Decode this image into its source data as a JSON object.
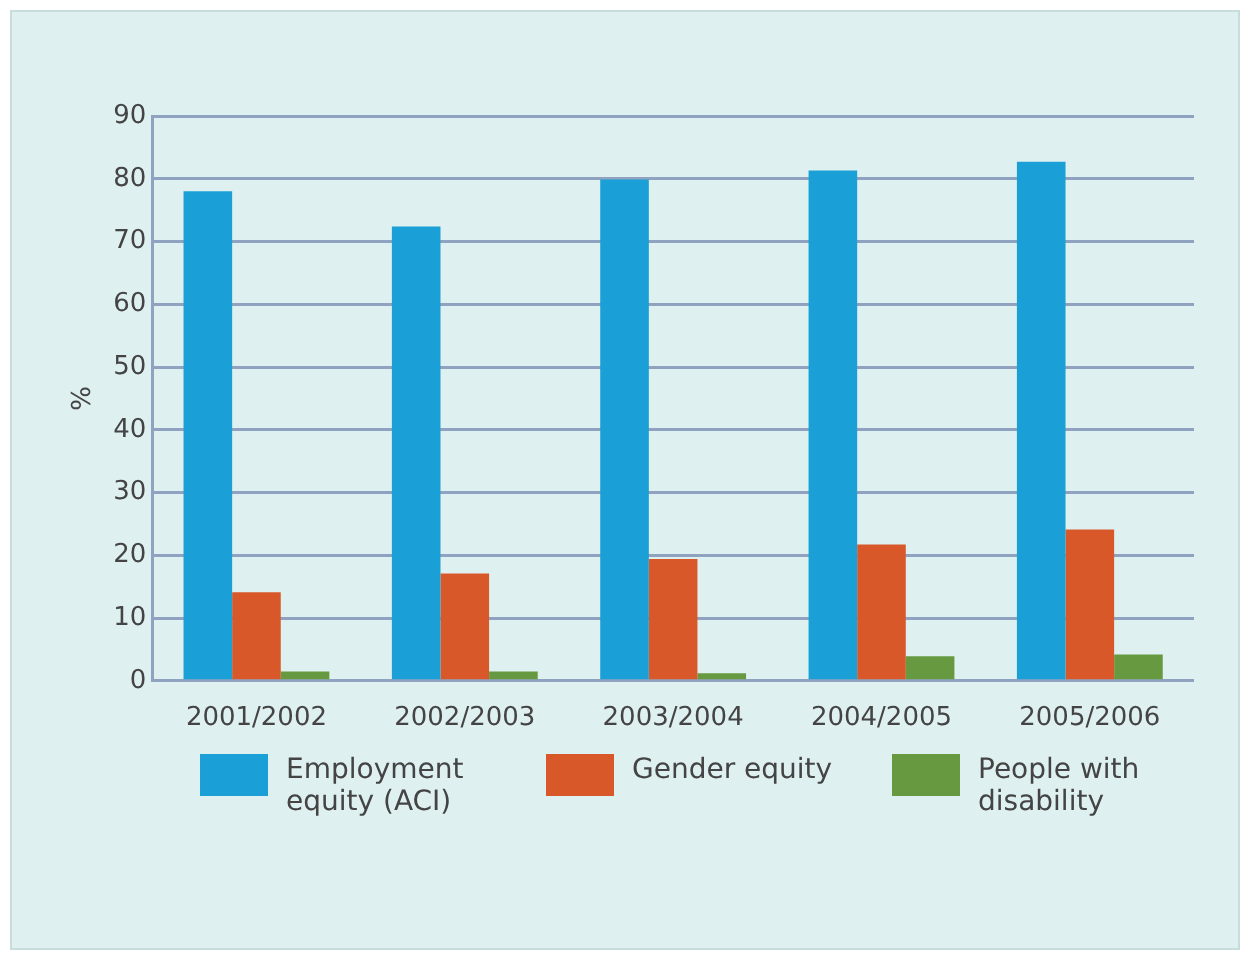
{
  "chart_data": {
    "type": "bar",
    "ylabel": "%",
    "categories": [
      "2001/2002",
      "2002/2003",
      "2003/2004",
      "2004/2005",
      "2005/2006"
    ],
    "series": [
      {
        "name": "Employment equity (ACI)",
        "color": "#1a9fd6",
        "values": [
          78.0,
          72.4,
          79.9,
          81.3,
          82.7
        ]
      },
      {
        "name": "Gender equity",
        "color": "#d9582a",
        "values": [
          14.1,
          17.1,
          19.4,
          21.7,
          24.1
        ]
      },
      {
        "name": "People with disability",
        "color": "#679a40",
        "values": [
          1.5,
          1.5,
          1.2,
          3.9,
          4.2
        ]
      }
    ],
    "ylim": [
      0,
      90
    ],
    "yticks": [
      0,
      10,
      20,
      30,
      40,
      50,
      60,
      70,
      80,
      90
    ],
    "grid": "y",
    "legend": "bottom"
  }
}
